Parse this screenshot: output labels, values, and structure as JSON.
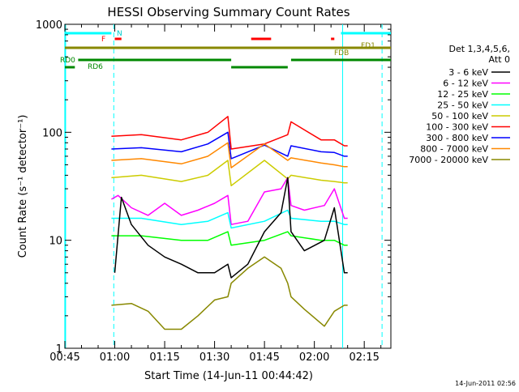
{
  "chart_data": {
    "type": "line",
    "title": "HESSI Observing Summary Count Rates",
    "xlabel": "Start Time (14-Jun-11 00:44:42)",
    "ylabel": "Count Rate (s⁻¹ detector⁻¹)",
    "yscale": "log",
    "xlim": [
      "00:45",
      "02:23"
    ],
    "ylim": [
      1,
      1000
    ],
    "x_ticks": [
      "00:45",
      "01:00",
      "01:15",
      "01:30",
      "01:45",
      "02:00",
      "02:15"
    ],
    "y_ticks": [
      "1",
      "10",
      "100",
      "1000"
    ],
    "timestamp": "14-Jun-2011 02:56",
    "legend": {
      "position": "right",
      "header_lines": [
        "Det 1,3,4,5,6,",
        "Att 0"
      ],
      "entries": [
        {
          "label": "3 - 6 keV",
          "color": "#000000"
        },
        {
          "label": "6 - 12 keV",
          "color": "#ff00ff"
        },
        {
          "label": "12 - 25 keV",
          "color": "#00ff00"
        },
        {
          "label": "25 - 50 keV",
          "color": "#00ffff"
        },
        {
          "label": "50 - 100 keV",
          "color": "#cccc00"
        },
        {
          "label": "100 - 300 keV",
          "color": "#ff0000"
        },
        {
          "label": "300 - 800 keV",
          "color": "#0000ff"
        },
        {
          "label": "800 - 7000 keV",
          "color": "#ff8800"
        },
        {
          "label": "7000 - 20000 keV",
          "color": "#888800"
        }
      ]
    },
    "flag_labels": [
      {
        "text": "N",
        "color": "#00cccc"
      },
      {
        "text": "F",
        "color": "#ff0000"
      },
      {
        "text": "FD1",
        "color": "#888800"
      },
      {
        "text": "FDB",
        "color": "#888800"
      },
      {
        "text": "RD0",
        "color": "#008800"
      },
      {
        "text": "RD6",
        "color": "#008800"
      }
    ],
    "series": [
      {
        "name": "100 - 300 keV",
        "color": "#ff0000",
        "x": [
          "00:59",
          "01:08",
          "01:20",
          "01:28",
          "01:34",
          "01:35",
          "01:45",
          "01:52",
          "01:53",
          "02:02",
          "02:06",
          "02:09",
          "02:10"
        ],
        "y": [
          92,
          95,
          85,
          100,
          140,
          70,
          78,
          95,
          125,
          85,
          85,
          75,
          75
        ]
      },
      {
        "name": "300 - 800 keV",
        "color": "#0000ff",
        "x": [
          "00:59",
          "01:08",
          "01:20",
          "01:28",
          "01:34",
          "01:35",
          "01:45",
          "01:52",
          "01:53",
          "02:02",
          "02:06",
          "02:09",
          "02:10"
        ],
        "y": [
          70,
          72,
          66,
          78,
          100,
          57,
          76,
          60,
          75,
          66,
          65,
          60,
          60
        ]
      },
      {
        "name": "800 - 7000 keV",
        "color": "#ff8800",
        "x": [
          "00:59",
          "01:08",
          "01:20",
          "01:28",
          "01:34",
          "01:35",
          "01:45",
          "01:52",
          "01:53",
          "02:02",
          "02:06",
          "02:09",
          "02:10"
        ],
        "y": [
          55,
          57,
          51,
          60,
          80,
          47,
          78,
          55,
          58,
          52,
          50,
          48,
          48
        ]
      },
      {
        "name": "50 - 100 keV",
        "color": "#cccc00",
        "x": [
          "00:59",
          "01:08",
          "01:20",
          "01:28",
          "01:34",
          "01:35",
          "01:45",
          "01:52",
          "01:53",
          "02:02",
          "02:06",
          "02:09",
          "02:10"
        ],
        "y": [
          38,
          40,
          35,
          40,
          55,
          32,
          55,
          37,
          40,
          36,
          35,
          34,
          34
        ]
      },
      {
        "name": "6 - 12 keV",
        "color": "#ff00ff",
        "x": [
          "00:59",
          "01:01",
          "01:05",
          "01:10",
          "01:15",
          "01:20",
          "01:25",
          "01:30",
          "01:34",
          "01:35",
          "01:40",
          "01:45",
          "01:50",
          "01:52",
          "01:53",
          "01:57",
          "02:03",
          "02:06",
          "02:09",
          "02:10"
        ],
        "y": [
          24,
          26,
          20,
          17,
          22,
          17,
          19,
          22,
          26,
          14,
          15,
          28,
          30,
          38,
          21,
          19,
          21,
          30,
          16,
          16
        ]
      },
      {
        "name": "25 - 50 keV",
        "color": "#00ffff",
        "x": [
          "00:59",
          "01:08",
          "01:20",
          "01:28",
          "01:34",
          "01:35",
          "01:45",
          "01:52",
          "01:53",
          "02:02",
          "02:06",
          "02:09",
          "02:10"
        ],
        "y": [
          16,
          16,
          14,
          15,
          18,
          13,
          15,
          19,
          16,
          15,
          15,
          14,
          14
        ]
      },
      {
        "name": "12 - 25 keV",
        "color": "#00ff00",
        "x": [
          "00:59",
          "01:08",
          "01:20",
          "01:28",
          "01:34",
          "01:35",
          "01:45",
          "01:52",
          "01:53",
          "02:02",
          "02:06",
          "02:09",
          "02:10"
        ],
        "y": [
          11,
          11,
          10,
          10,
          12,
          9,
          10,
          12,
          11,
          10,
          10,
          9,
          9
        ]
      },
      {
        "name": "3 - 6 keV",
        "color": "#000000",
        "x": [
          "01:00",
          "01:02",
          "01:05",
          "01:10",
          "01:15",
          "01:20",
          "01:25",
          "01:30",
          "01:34",
          "01:35",
          "01:40",
          "01:45",
          "01:50",
          "01:52",
          "01:53",
          "01:57",
          "02:03",
          "02:06",
          "02:09",
          "02:10"
        ],
        "y": [
          5,
          25,
          14,
          9,
          7,
          6,
          5,
          5,
          6,
          4.5,
          6,
          12,
          18,
          38,
          12,
          8,
          10,
          20,
          5,
          5
        ]
      },
      {
        "name": "7000 - 20000 keV",
        "color": "#888800",
        "x": [
          "00:59",
          "01:05",
          "01:10",
          "01:15",
          "01:20",
          "01:25",
          "01:30",
          "01:34",
          "01:35",
          "01:40",
          "01:45",
          "01:50",
          "01:52",
          "01:53",
          "01:57",
          "02:03",
          "02:06",
          "02:09",
          "02:10"
        ],
        "y": [
          2.5,
          2.6,
          2.2,
          1.5,
          1.5,
          2,
          2.8,
          3,
          4,
          5.5,
          7,
          5.5,
          4,
          3,
          2.3,
          1.6,
          2.2,
          2.5,
          2.5
        ]
      }
    ]
  }
}
